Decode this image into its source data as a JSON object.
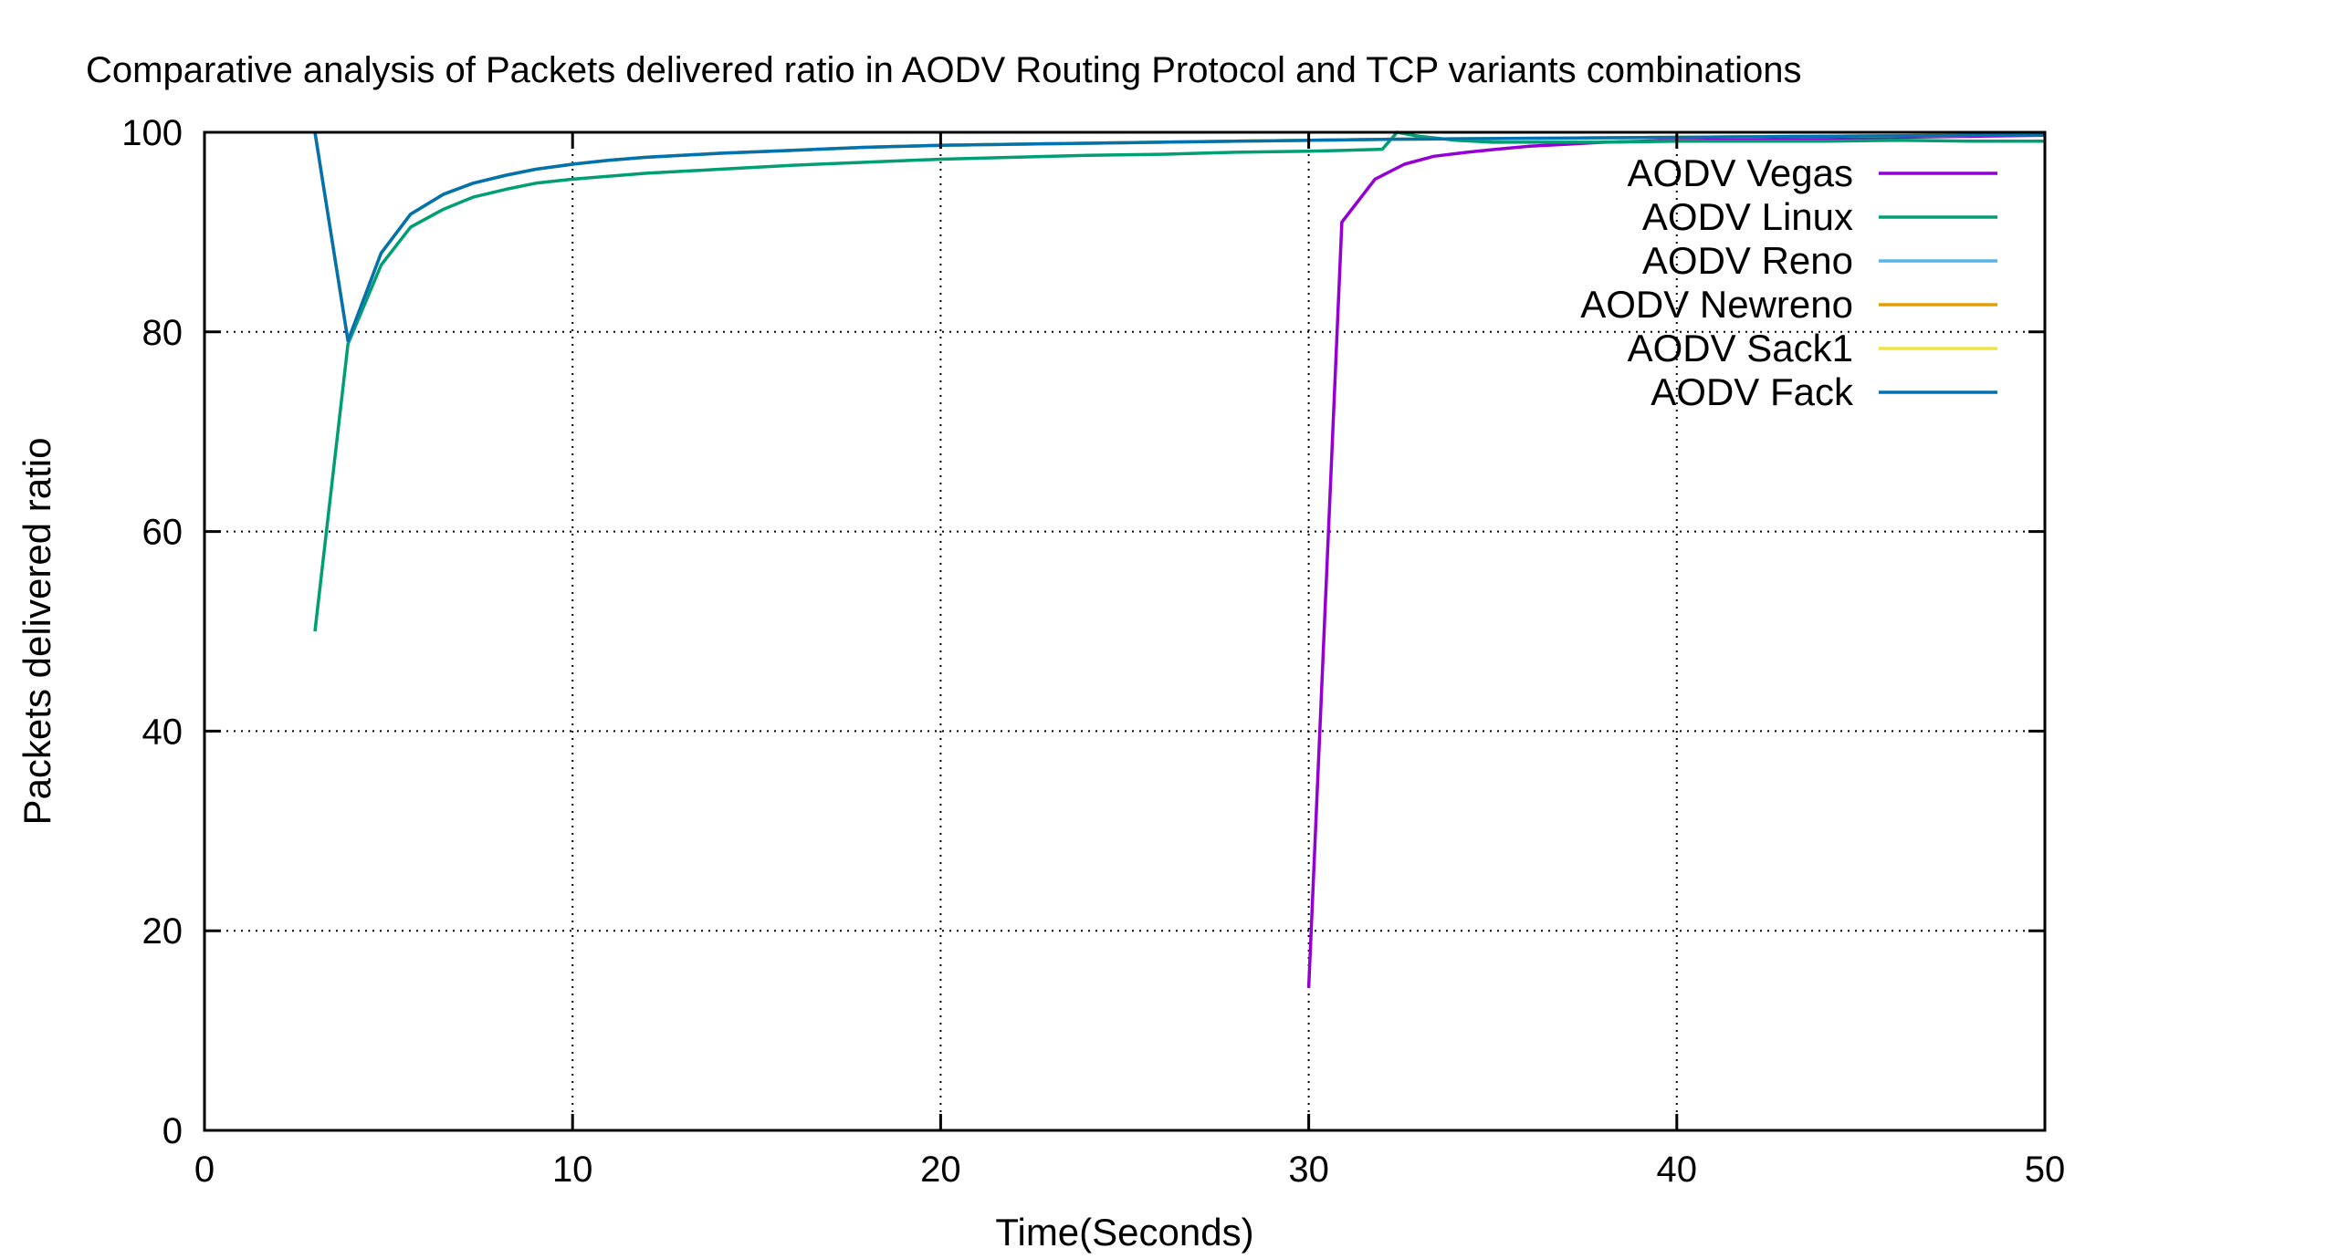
{
  "chart_data": {
    "type": "line",
    "title": "Comparative analysis of Packets delivered ratio in AODV Routing Protocol and TCP variants combinations",
    "xlabel": "Time(Seconds)",
    "ylabel": "Packets delivered ratio",
    "xlim": [
      0,
      50
    ],
    "ylim": [
      0,
      100
    ],
    "xticks": [
      "0",
      "10",
      "20",
      "30",
      "40",
      "50"
    ],
    "yticks": [
      "0",
      "20",
      "40",
      "60",
      "80",
      "100"
    ],
    "grid": true,
    "legend_position": "top-right",
    "series": [
      {
        "name": "AODV Vegas",
        "color": "#9400d3",
        "x": [
          30,
          30.9,
          31.8,
          32.6,
          33.4,
          34.3,
          35.1,
          36,
          37,
          38,
          40,
          42,
          44,
          46,
          48,
          50
        ],
        "y": [
          14.3,
          91,
          95.3,
          96.8,
          97.6,
          98,
          98.3,
          98.6,
          98.8,
          99,
          99.2,
          99.3,
          99.4,
          99.5,
          99.6,
          99.7
        ]
      },
      {
        "name": "AODV Linux",
        "color": "#009e73",
        "x": [
          3,
          3.9,
          4.8,
          5.6,
          6.5,
          7.3,
          8.2,
          9,
          10,
          12,
          14,
          16,
          18,
          20,
          22,
          24,
          26,
          28,
          30,
          31,
          32,
          32.4,
          33,
          34,
          35,
          36,
          38,
          40,
          42,
          44,
          46,
          48,
          50
        ],
        "y": [
          50,
          78.8,
          86.7,
          90.5,
          92.3,
          93.5,
          94.3,
          94.9,
          95.3,
          95.9,
          96.3,
          96.7,
          97,
          97.3,
          97.5,
          97.7,
          97.8,
          98,
          98.1,
          98.2,
          98.3,
          100,
          99.6,
          99.2,
          99,
          99,
          99,
          99.1,
          99.1,
          99.1,
          99.2,
          99.1,
          99.1
        ]
      },
      {
        "name": "AODV Reno",
        "color": "#56b4e9",
        "x": [
          3,
          3.9,
          4.8,
          5.6,
          6.5,
          7.3,
          8.2,
          9,
          10,
          11,
          12,
          14,
          16,
          18,
          20,
          24,
          28,
          32,
          36,
          40,
          44,
          48,
          50
        ],
        "y": [
          100,
          79.1,
          87.9,
          91.8,
          93.8,
          94.9,
          95.7,
          96.3,
          96.8,
          97.2,
          97.5,
          97.9,
          98.2,
          98.5,
          98.7,
          98.9,
          99.1,
          99.3,
          99.4,
          99.5,
          99.6,
          99.7,
          99.7
        ]
      },
      {
        "name": "AODV Newreno",
        "color": "#e69f00",
        "x": [
          3,
          3.9,
          4.8,
          5.6,
          6.5,
          7.3,
          8.2,
          9,
          10,
          11,
          12,
          14,
          16,
          18,
          20,
          24,
          28,
          32,
          36,
          40,
          44,
          48,
          50
        ],
        "y": [
          100,
          79.1,
          87.9,
          91.8,
          93.8,
          94.9,
          95.7,
          96.3,
          96.8,
          97.2,
          97.5,
          97.9,
          98.2,
          98.5,
          98.7,
          98.9,
          99.1,
          99.3,
          99.4,
          99.5,
          99.6,
          99.7,
          99.7
        ]
      },
      {
        "name": "AODV Sack1",
        "color": "#f0e442",
        "x": [
          3,
          3.9,
          4.8,
          5.6,
          6.5,
          7.3,
          8.2,
          9,
          10,
          11,
          12,
          14,
          16,
          18,
          20,
          24,
          28,
          32,
          36,
          40,
          44,
          48,
          50
        ],
        "y": [
          100,
          79.1,
          87.9,
          91.8,
          93.8,
          94.9,
          95.7,
          96.3,
          96.8,
          97.2,
          97.5,
          97.9,
          98.2,
          98.5,
          98.7,
          98.9,
          99.1,
          99.3,
          99.4,
          99.5,
          99.6,
          99.7,
          99.7
        ]
      },
      {
        "name": "AODV Fack",
        "color": "#0072b2",
        "x": [
          3,
          3.9,
          4.8,
          5.6,
          6.5,
          7.3,
          8.2,
          9,
          10,
          11,
          12,
          14,
          16,
          18,
          20,
          24,
          28,
          32,
          36,
          40,
          44,
          48,
          50
        ],
        "y": [
          100,
          79.1,
          87.9,
          91.8,
          93.8,
          94.9,
          95.7,
          96.3,
          96.8,
          97.2,
          97.5,
          97.9,
          98.2,
          98.5,
          98.7,
          98.9,
          99.1,
          99.3,
          99.4,
          99.5,
          99.6,
          99.7,
          99.7
        ]
      }
    ]
  }
}
